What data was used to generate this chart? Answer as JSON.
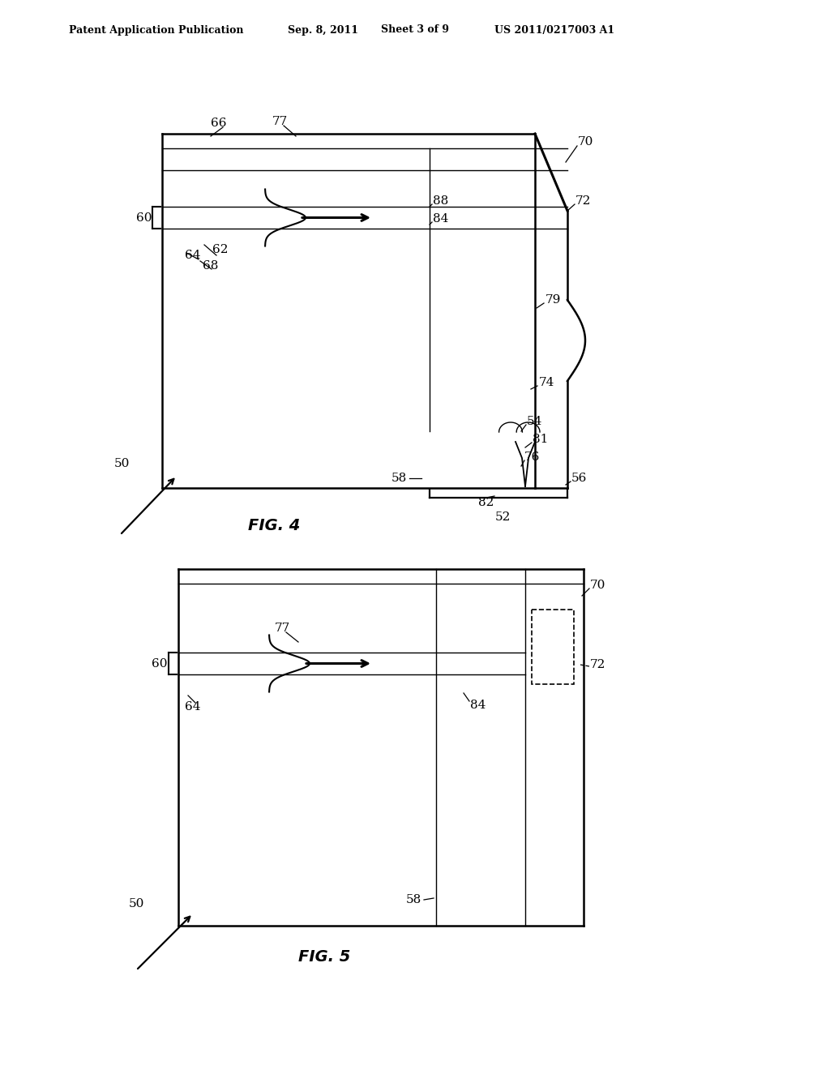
{
  "bg_color": "#ffffff",
  "line_color": "#000000",
  "header_text": "Patent Application Publication",
  "header_date": "Sep. 8, 2011",
  "header_sheet": "Sheet 3 of 9",
  "header_patent": "US 2011/0217003 A1",
  "fig4_label": "FIG. 4",
  "fig5_label": "FIG. 5"
}
